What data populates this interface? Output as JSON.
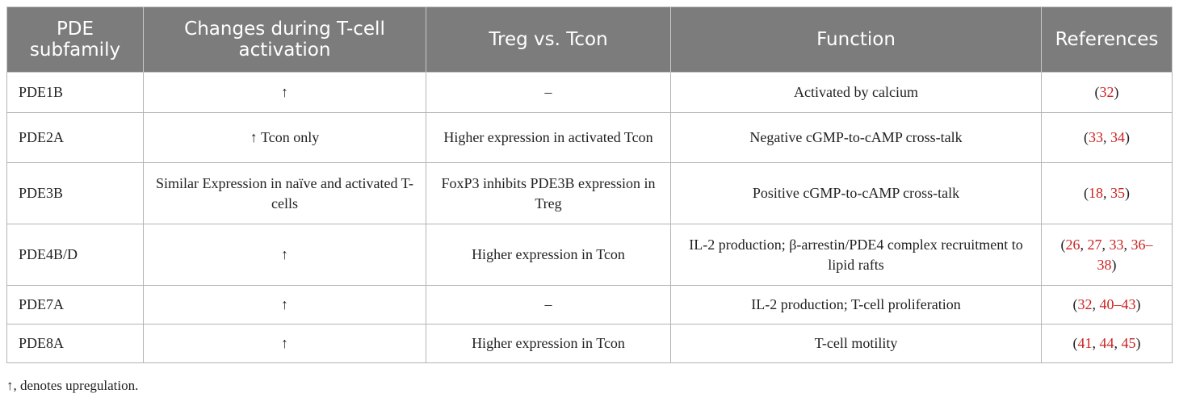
{
  "headers": [
    "PDE subfamily",
    "Changes during T-cell activation",
    "Treg vs. Tcon",
    "Function",
    "References"
  ],
  "rows": [
    {
      "subfamily": "PDE1B",
      "change": "↑",
      "treg": "–",
      "function": "Activated by calcium",
      "refs": [
        {
          "t": "("
        },
        {
          "r": "32"
        },
        {
          "t": ")"
        }
      ]
    },
    {
      "subfamily": "PDE2A",
      "change": "↑ Tcon only",
      "treg": "Higher expression in activated Tcon",
      "function": "Negative cGMP-to-cAMP cross-talk",
      "refs": [
        {
          "t": "("
        },
        {
          "r": "33"
        },
        {
          "t": ", "
        },
        {
          "r": "34"
        },
        {
          "t": ")"
        }
      ]
    },
    {
      "subfamily": "PDE3B",
      "change": "Similar Expression in naïve and activated T-cells",
      "treg": "FoxP3 inhibits PDE3B expression in Treg",
      "function": "Positive cGMP-to-cAMP cross-talk",
      "refs": [
        {
          "t": "("
        },
        {
          "r": "18"
        },
        {
          "t": ", "
        },
        {
          "r": "35"
        },
        {
          "t": ")"
        }
      ]
    },
    {
      "subfamily": "PDE4B/D",
      "change": "↑",
      "treg": "Higher expression in Tcon",
      "function": "IL-2 production; β-arrestin/PDE4 complex recruitment to lipid rafts",
      "refs": [
        {
          "t": "("
        },
        {
          "r": "26"
        },
        {
          "t": ", "
        },
        {
          "r": "27"
        },
        {
          "t": ", "
        },
        {
          "r": "33"
        },
        {
          "t": ", "
        },
        {
          "r": "36–38"
        },
        {
          "t": ")"
        }
      ]
    },
    {
      "subfamily": "PDE7A",
      "change": "↑",
      "treg": "–",
      "function": "IL-2 production; T-cell proliferation",
      "refs": [
        {
          "t": "("
        },
        {
          "r": "32"
        },
        {
          "t": ", "
        },
        {
          "r": "40–43"
        },
        {
          "t": ")"
        }
      ]
    },
    {
      "subfamily": "PDE8A",
      "change": "↑",
      "treg": "Higher expression in Tcon",
      "function": "T-cell motility",
      "refs": [
        {
          "t": "("
        },
        {
          "r": "41"
        },
        {
          "t": ", "
        },
        {
          "r": "44"
        },
        {
          "t": ", "
        },
        {
          "r": "45"
        },
        {
          "t": ")"
        }
      ]
    }
  ],
  "footnote": "↑, denotes upregulation.",
  "colors": {
    "header_bg": "#7c7c7c",
    "header_text": "#ffffff",
    "reference_link": "#cc2222",
    "border": "#b4b4b4"
  }
}
